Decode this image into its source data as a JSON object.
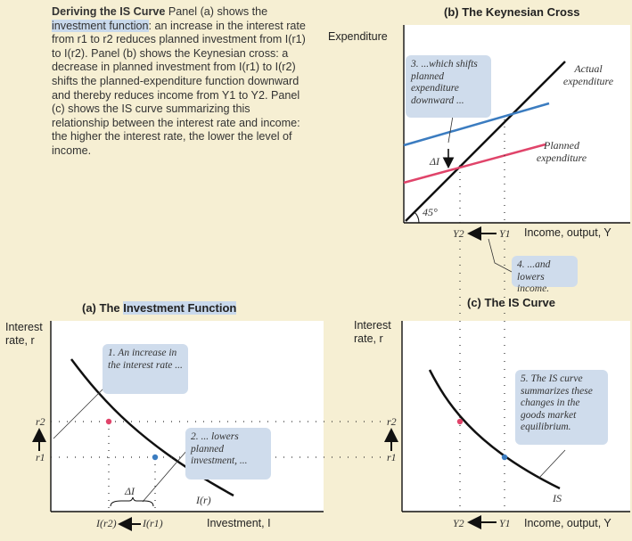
{
  "caption": {
    "title": "Deriving the IS Curve",
    "text_1": " Panel (a) shows the ",
    "highlight": "investment function",
    "text_2": ": an increase in the interest rate from r1 to r2 reduces planned investment from I(r1) to I(r2). Panel (b) shows the Keynesian cross: a decrease in planned investment from I(r1) to I(r2) shifts the planned-expenditure function downward and thereby reduces income from Y1 to Y2. Panel (c) shows the IS curve summarizing this relationship between the interest rate and income: the higher the interest rate, the lower the level of income."
  },
  "panel_b": {
    "title": "(b) The Keynesian Cross",
    "ylabel": "Expenditure",
    "xlabel": "Income, output, Y",
    "actual_label": "Actual expenditure",
    "planned_label": "Planned expenditure",
    "angle_label": "45°",
    "delta_label": "ΔI",
    "callout_3": "3. ...which shifts planned expenditure downward ...",
    "callout_4": "4. ...and lowers income.",
    "y2": "Y2",
    "y1": "Y1",
    "colors": {
      "actual": "#111111",
      "planned_high": "#3b7cc0",
      "planned_low": "#e0446a"
    }
  },
  "panel_a": {
    "title_prefix": "(a) The ",
    "title_highlight": "Investment Function",
    "ylabel_1": "Interest",
    "ylabel_2": "rate, r",
    "xlabel": "Investment, I",
    "curve_label": "I(r)",
    "r2": "r2",
    "r1": "r1",
    "i_r2": "I(r2)",
    "i_r1": "I(r1)",
    "delta_label": "ΔI",
    "callout_1": "1. An increase in the interest rate ...",
    "callout_2": "2. ... lowers planned investment, ..."
  },
  "panel_c": {
    "title": "(c) The IS Curve",
    "ylabel_1": "Interest",
    "ylabel_2": "rate, r",
    "xlabel": "Income, output, Y",
    "curve_label": "IS",
    "r2": "r2",
    "r1": "r1",
    "y2": "Y2",
    "y1": "Y1",
    "callout_5": "5. The IS curve summarizes these changes in the goods market equilibrium."
  }
}
